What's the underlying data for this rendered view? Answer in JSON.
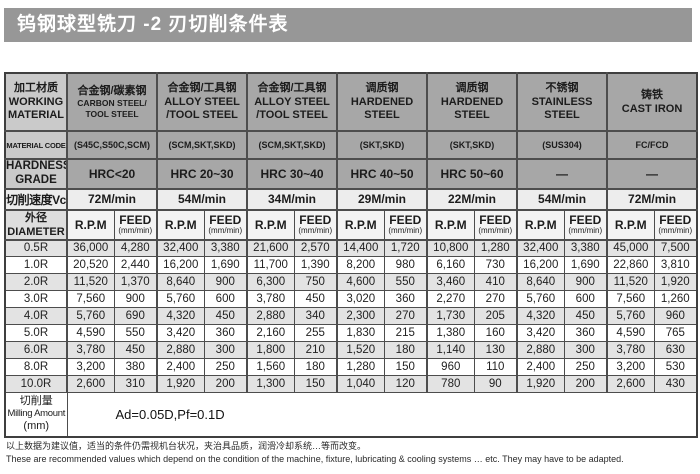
{
  "title": "钨钢球型铣刀 -2 刃切削条件表",
  "colors": {
    "title_bar": "#979797",
    "header_cell": "#a7a7a7",
    "label_cell": "#cacaca",
    "speed_row": "#ededed",
    "row_shade": "#e3e3e3"
  },
  "table": {
    "working_material_label": {
      "zh": "加工材质",
      "en1": "WORKING",
      "en2": "MATERIAL"
    },
    "materials": [
      {
        "zh": "合金钢/碳素钢",
        "en1": "CARBON STEEL/",
        "en2": "TOOL STEEL",
        "code": "(S45C,S50C,SCM)",
        "hardness": "HRC<20",
        "speed": "72M/min"
      },
      {
        "zh": "合金钢/工具钢",
        "en1": "ALLOY STEEL",
        "en2": "/TOOL STEEL",
        "code": "(SCM,SKT,SKD)",
        "hardness": "HRC 20~30",
        "speed": "54M/min"
      },
      {
        "zh": "合金钢/工具钢",
        "en1": "ALLOY STEEL",
        "en2": "/TOOL STEEL",
        "code": "(SCM,SKT,SKD)",
        "hardness": "HRC 30~40",
        "speed": "34M/min"
      },
      {
        "zh": "调质钢",
        "en1": "HARDENED",
        "en2": "STEEL",
        "code": "(SKT,SKD)",
        "hardness": "HRC 40~50",
        "speed": "29M/min"
      },
      {
        "zh": "调质钢",
        "en1": "HARDENED",
        "en2": "STEEL",
        "code": "(SKT,SKD)",
        "hardness": "HRC 50~60",
        "speed": "22M/min"
      },
      {
        "zh": "不锈钢",
        "en1": "STAINLESS",
        "en2": "STEEL",
        "code": "(SUS304)",
        "hardness": "—",
        "speed": "54M/min"
      },
      {
        "zh": "铸铁",
        "en1": "CAST IRON",
        "en2": "",
        "code": "FC/FCD",
        "hardness": "—",
        "speed": "72M/min"
      }
    ],
    "row_labels": {
      "material_code": "MATERIAL CODE",
      "hardness1": "HARDNESS",
      "hardness2": "GRADE",
      "cutting_speed": "切削速度Vc",
      "diameter_zh": "外径",
      "diameter_en": "DIAMETER",
      "rpm": "R.P.M",
      "feed": "FEED",
      "feed_unit": "(mm/min)"
    },
    "rows": [
      {
        "d": "0.5R",
        "v": [
          "36,000",
          "4,280",
          "32,400",
          "3,380",
          "21,600",
          "2,570",
          "14,400",
          "1,720",
          "10,800",
          "1,280",
          "32,400",
          "3,380",
          "45,000",
          "7,500"
        ]
      },
      {
        "d": "1.0R",
        "v": [
          "20,520",
          "2,440",
          "16,200",
          "1,690",
          "11,700",
          "1,390",
          "8,200",
          "980",
          "6,160",
          "730",
          "16,200",
          "1,690",
          "22,860",
          "3,810"
        ]
      },
      {
        "d": "2.0R",
        "v": [
          "11,520",
          "1,370",
          "8,640",
          "900",
          "6,300",
          "750",
          "4,600",
          "550",
          "3,460",
          "410",
          "8,640",
          "900",
          "11,520",
          "1,920"
        ]
      },
      {
        "d": "3.0R",
        "v": [
          "7,560",
          "900",
          "5,760",
          "600",
          "3,780",
          "450",
          "3,020",
          "360",
          "2,270",
          "270",
          "5,760",
          "600",
          "7,560",
          "1,260"
        ]
      },
      {
        "d": "4.0R",
        "v": [
          "5,760",
          "690",
          "4,320",
          "450",
          "2,880",
          "340",
          "2,300",
          "270",
          "1,730",
          "205",
          "4,320",
          "450",
          "5,760",
          "960"
        ]
      },
      {
        "d": "5.0R",
        "v": [
          "4,590",
          "550",
          "3,420",
          "360",
          "2,160",
          "255",
          "1,830",
          "215",
          "1,380",
          "160",
          "3,420",
          "360",
          "4,590",
          "765"
        ]
      },
      {
        "d": "6.0R",
        "v": [
          "3,780",
          "450",
          "2,880",
          "300",
          "1,800",
          "210",
          "1,520",
          "180",
          "1,140",
          "130",
          "2,880",
          "300",
          "3,780",
          "630"
        ]
      },
      {
        "d": "8.0R",
        "v": [
          "3,200",
          "380",
          "2,400",
          "250",
          "1,560",
          "180",
          "1,280",
          "150",
          "960",
          "110",
          "2,400",
          "250",
          "3,200",
          "530"
        ]
      },
      {
        "d": "10.0R",
        "v": [
          "2,600",
          "310",
          "1,920",
          "200",
          "1,300",
          "150",
          "1,040",
          "120",
          "780",
          "90",
          "1,920",
          "200",
          "2,600",
          "430"
        ]
      }
    ],
    "milling": {
      "zh": "切削量",
      "en": "Milling Amount",
      "unit": "(mm)",
      "value": "Ad=0.05D,Pf=0.1D"
    }
  },
  "footer": {
    "zh": "以上数据为建议值，适当的条件仍需视机台状况，夹治具品质，润滑冷却系统…等而改变。",
    "en": "These are recommended values which depend on the condition of the machine, fixture, lubricating & cooling systems … etc. They may have to be adapted."
  }
}
